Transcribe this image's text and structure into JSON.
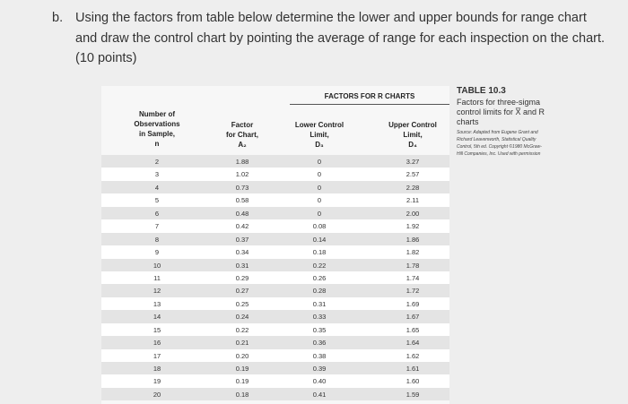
{
  "question": {
    "label": "b.",
    "lines": [
      "Using the factors from table below determine the lower and upper bounds for range chart",
      "and draw the control chart by pointing the average of range for each inspection on the chart.",
      "(10 points)"
    ]
  },
  "table": {
    "title": "FACTORS FOR R CHARTS",
    "headers": [
      [
        "Number of",
        "Observations",
        "in Sample,",
        "n"
      ],
      [
        "Factor",
        "for Chart,",
        "A₂"
      ],
      [
        "Lower Control",
        "Limit,",
        "D₃"
      ],
      [
        "Upper Control",
        "Limit,",
        "D₄"
      ]
    ],
    "rows": [
      [
        "2",
        "1.88",
        "0",
        "3.27"
      ],
      [
        "3",
        "1.02",
        "0",
        "2.57"
      ],
      [
        "4",
        "0.73",
        "0",
        "2.28"
      ],
      [
        "5",
        "0.58",
        "0",
        "2.11"
      ],
      [
        "6",
        "0.48",
        "0",
        "2.00"
      ],
      [
        "7",
        "0.42",
        "0.08",
        "1.92"
      ],
      [
        "8",
        "0.37",
        "0.14",
        "1.86"
      ],
      [
        "9",
        "0.34",
        "0.18",
        "1.82"
      ],
      [
        "10",
        "0.31",
        "0.22",
        "1.78"
      ],
      [
        "11",
        "0.29",
        "0.26",
        "1.74"
      ],
      [
        "12",
        "0.27",
        "0.28",
        "1.72"
      ],
      [
        "13",
        "0.25",
        "0.31",
        "1.69"
      ],
      [
        "14",
        "0.24",
        "0.33",
        "1.67"
      ],
      [
        "15",
        "0.22",
        "0.35",
        "1.65"
      ],
      [
        "16",
        "0.21",
        "0.36",
        "1.64"
      ],
      [
        "17",
        "0.20",
        "0.38",
        "1.62"
      ],
      [
        "18",
        "0.19",
        "0.39",
        "1.61"
      ],
      [
        "19",
        "0.19",
        "0.40",
        "1.60"
      ],
      [
        "20",
        "0.18",
        "0.41",
        "1.59"
      ]
    ]
  },
  "caption": {
    "label": "TABLE 10.3",
    "lines": [
      "Factors for three-sigma",
      "control limits for X̅ and R",
      "charts"
    ],
    "source": [
      "Source: Adapted from Eugene Grant and",
      "Richard Leavenworth, Statistical Quality",
      "Control, 5th ed. Copyright ©1980 McGraw-",
      "Hill Companies, Inc. Used with permission"
    ]
  }
}
